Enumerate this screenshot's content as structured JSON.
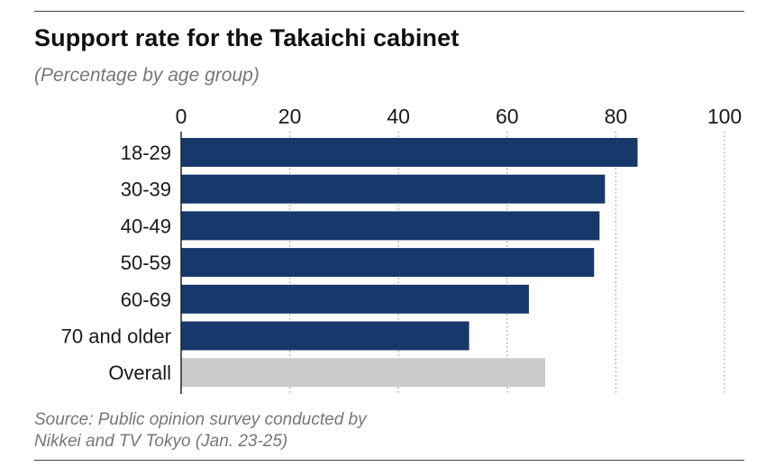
{
  "title": "Support rate for the Takaichi cabinet",
  "subtitle": "(Percentage by age group)",
  "source_lines": [
    "Source: Public opinion survey conducted by",
    "Nikkei and TV Tokyo (Jan. 23-25)"
  ],
  "colors": {
    "bar": "#17386b",
    "overall_bar": "#cccccc",
    "grid": "#9a9a9a"
  },
  "chart_data": {
    "type": "bar",
    "orientation": "horizontal",
    "categories": [
      "18-29",
      "30-39",
      "40-49",
      "50-59",
      "60-69",
      "70 and older",
      "Overall"
    ],
    "values": [
      84,
      78,
      77,
      76,
      64,
      53,
      67
    ],
    "xlim": [
      0,
      100
    ],
    "xticks": [
      0,
      20,
      40,
      60,
      80,
      100
    ],
    "xtick_position": "top",
    "grid": "vertical dotted",
    "highlight_category": "Overall"
  }
}
